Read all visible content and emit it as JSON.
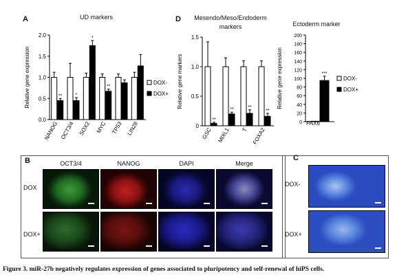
{
  "panels": {
    "A": {
      "letter": "A",
      "title": "UD markers",
      "ylabel": "Relative gene expression",
      "legend": [
        "DOX-",
        "DOX+"
      ]
    },
    "D": {
      "letter": "D",
      "title": "Mesendo/Meso/Endoderm\nmarkers",
      "ylabel": "Relative gene markers",
      "ecto_title": "Ectoderm marker",
      "ecto_ylabel": "Relative gene expression",
      "legend": [
        "DOX-",
        "DOX+"
      ]
    },
    "B": {
      "letter": "B",
      "columns": [
        "OCT3/4",
        "NANOG",
        "DAPI",
        "Merge"
      ],
      "rows": [
        "DOX",
        "DOX+"
      ]
    },
    "C": {
      "letter": "C",
      "rows": [
        "DOX-",
        "DOX+"
      ]
    }
  },
  "chart_data": [
    {
      "type": "bar",
      "title": "UD markers",
      "ylabel": "Relative gene expression",
      "categories": [
        "NANOG",
        "OCT3/4",
        "SOX2",
        "MYC",
        "TP53",
        "LIN28"
      ],
      "ylim": [
        0,
        2.0
      ],
      "yticks": [
        "0.0",
        "0.5",
        "1.0",
        "1.5",
        "2.0"
      ],
      "series": [
        {
          "name": "DOX-",
          "values": [
            1.0,
            1.0,
            1.0,
            1.0,
            1.0,
            1.0
          ],
          "errors": [
            0.12,
            0.33,
            0.1,
            0.08,
            0.08,
            0.12
          ],
          "color": "#ffffff"
        },
        {
          "name": "DOX+",
          "values": [
            0.45,
            0.45,
            1.75,
            0.67,
            0.87,
            1.27
          ],
          "errors": [
            0.05,
            0.07,
            0.12,
            0.05,
            0.07,
            0.27
          ],
          "color": "#000000"
        }
      ],
      "annotations": [
        "**",
        "*",
        "*",
        "**",
        "",
        ""
      ]
    },
    {
      "type": "bar",
      "title": "Mesendo/Meso/Endoderm markers",
      "ylabel": "Relative gene markers",
      "categories": [
        "GSC",
        "MIXL1",
        "T",
        "FOXA2"
      ],
      "ylim": [
        0,
        1.5
      ],
      "yticks": [
        "0",
        "0.5",
        "1.0",
        "1.5"
      ],
      "series": [
        {
          "name": "DOX-",
          "values": [
            1.0,
            1.0,
            1.0,
            1.0
          ],
          "errors": [
            0.42,
            0.15,
            0.1,
            0.1
          ],
          "color": "#ffffff"
        },
        {
          "name": "DOX+",
          "values": [
            0.04,
            0.2,
            0.21,
            0.16
          ],
          "errors": [
            0.02,
            0.03,
            0.06,
            0.05
          ],
          "color": "#000000"
        }
      ],
      "annotations": [
        "**",
        "**",
        "**",
        "**"
      ]
    },
    {
      "type": "bar",
      "title": "Ectoderm marker",
      "ylabel": "Relative gene expression",
      "categories": [
        "PAX6"
      ],
      "ylim": [
        0,
        200
      ],
      "yticks": [
        "0",
        "20",
        "40",
        "60",
        "80",
        "100",
        "120",
        "140",
        "160",
        "180",
        "200"
      ],
      "series": [
        {
          "name": "DOX-",
          "values": [
            1
          ],
          "errors": [
            0
          ],
          "color": "#ffffff"
        },
        {
          "name": "DOX+",
          "values": [
            95
          ],
          "errors": [
            10
          ],
          "color": "#000000"
        }
      ],
      "annotations": [
        "***"
      ]
    }
  ],
  "caption": "Figure 3. miR-27b negatively regulates expression of genes associated to pluripotency and self-renewal of hiPS cells."
}
